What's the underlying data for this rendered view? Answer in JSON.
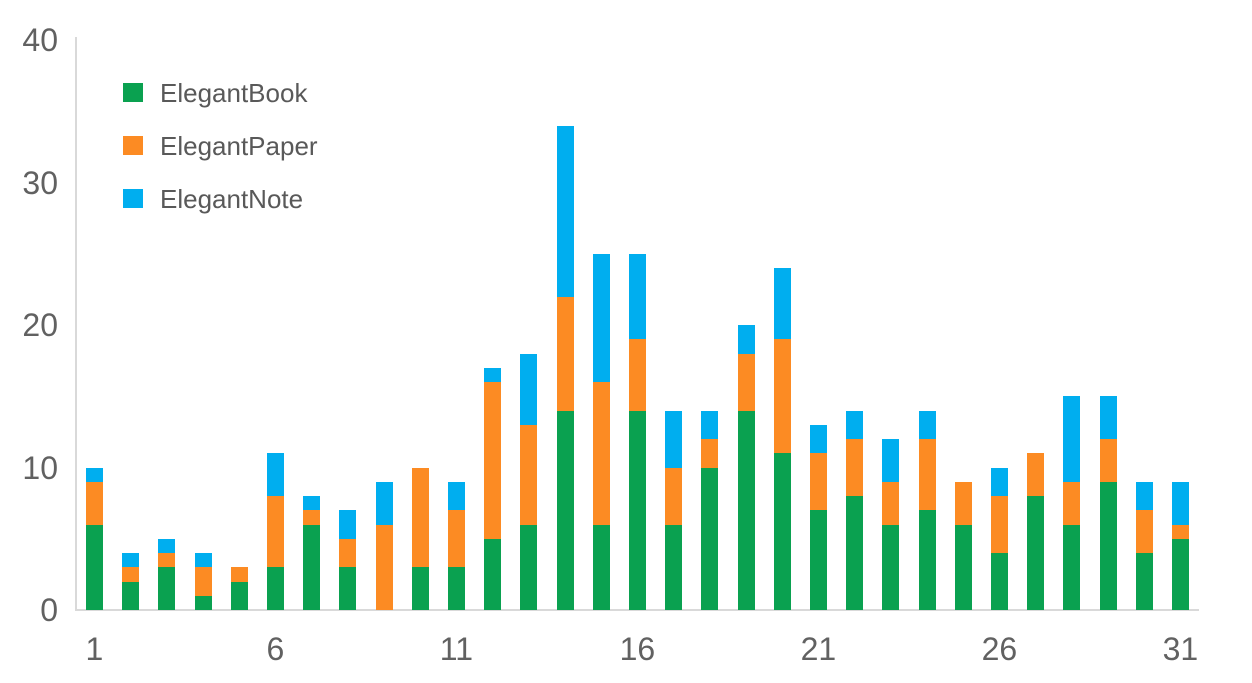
{
  "chart_data": {
    "type": "bar",
    "stacked": true,
    "title": "",
    "xlabel": "",
    "ylabel": "",
    "grid": false,
    "legend_position": "top-left",
    "ylim": [
      0,
      40
    ],
    "yticks": [
      0,
      10,
      20,
      30,
      40
    ],
    "xticks": [
      1,
      6,
      11,
      16,
      21,
      26,
      31
    ],
    "categories": [
      1,
      2,
      3,
      4,
      5,
      6,
      7,
      8,
      9,
      10,
      11,
      12,
      13,
      14,
      15,
      16,
      17,
      18,
      19,
      20,
      21,
      22,
      23,
      24,
      25,
      26,
      27,
      28,
      29,
      30,
      31
    ],
    "series": [
      {
        "name": "ElegantBook",
        "color": "#0aa150",
        "values": [
          6,
          2,
          3,
          1,
          2,
          3,
          6,
          3,
          0,
          3,
          3,
          5,
          6,
          14,
          6,
          14,
          6,
          10,
          14,
          11,
          7,
          8,
          6,
          7,
          6,
          4,
          8,
          6,
          9,
          4,
          5
        ]
      },
      {
        "name": "ElegantPaper",
        "color": "#fc8b23",
        "values": [
          3,
          1,
          1,
          2,
          1,
          5,
          1,
          2,
          6,
          7,
          4,
          11,
          7,
          8,
          10,
          5,
          4,
          2,
          4,
          8,
          4,
          4,
          3,
          5,
          3,
          4,
          3,
          3,
          3,
          3,
          1
        ]
      },
      {
        "name": "ElegantNote",
        "color": "#00aeef",
        "values": [
          1,
          1,
          1,
          1,
          0,
          3,
          1,
          2,
          3,
          0,
          2,
          1,
          5,
          12,
          9,
          6,
          4,
          2,
          2,
          5,
          2,
          2,
          3,
          2,
          0,
          2,
          0,
          6,
          3,
          2,
          3
        ]
      }
    ],
    "totals": [
      10,
      4,
      5,
      4,
      3,
      11,
      8,
      7,
      9,
      10,
      9,
      17,
      18,
      34,
      25,
      25,
      14,
      14,
      20,
      24,
      13,
      14,
      12,
      14,
      9,
      10,
      11,
      15,
      15,
      9,
      9
    ],
    "colors": {
      "axis_line": "#d9d9d9",
      "tick_label": "#616161",
      "legend_label": "#595959"
    }
  }
}
